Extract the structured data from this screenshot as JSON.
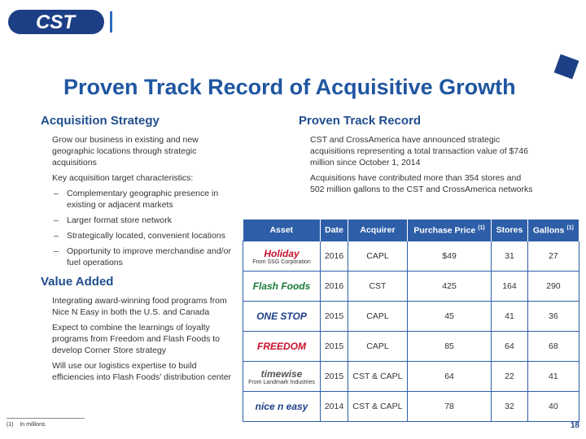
{
  "header": {
    "logo": "CST"
  },
  "title": "Proven Track Record of Acquisitive Growth",
  "left": {
    "sections": [
      {
        "heading": "Acquisition Strategy",
        "items": [
          {
            "text": "Grow our business in existing and new geographic locations through strategic acquisitions",
            "level": 1
          },
          {
            "text": "Key acquisition target characteristics:",
            "level": 1
          },
          {
            "text": "Complementary geographic presence in existing or adjacent markets",
            "level": 2
          },
          {
            "text": "Larger format store network",
            "level": 2
          },
          {
            "text": "Strategically located, convenient locations",
            "level": 2
          },
          {
            "text": "Opportunity to improve merchandise and/or fuel operations",
            "level": 2
          }
        ]
      },
      {
        "heading": "Value Added",
        "items": [
          {
            "text": "Integrating award-winning food programs from Nice N Easy in both the U.S. and Canada",
            "level": 1
          },
          {
            "text": "Expect to combine the learnings of loyalty programs from Freedom and Flash Foods to develop Corner Store strategy",
            "level": 1
          },
          {
            "text": "Will use our logistics expertise to build efficiencies into Flash Foods’ distribution center",
            "level": 1
          }
        ]
      }
    ]
  },
  "right": {
    "heading": "Proven Track Record",
    "paragraphs": [
      "CST and CrossAmerica have announced strategic acquisitions representing a total transaction value of $746 million since October 1, 2014",
      "Acquisitions have contributed more than 354 stores and 502 million gallons to the CST and CrossAmerica networks"
    ]
  },
  "table": {
    "headers": [
      {
        "text": "Asset"
      },
      {
        "text": "Date"
      },
      {
        "text": "Acquirer"
      },
      {
        "text": "Purchase Price",
        "sup": "(1)"
      },
      {
        "text": "Stores"
      },
      {
        "text": "Gallons",
        "sup": "(1)"
      }
    ],
    "rows": [
      {
        "asset": "Holiday",
        "note": "From SSG Corporation",
        "cells": [
          "2016",
          "CAPL",
          "$49",
          "31",
          "27"
        ]
      },
      {
        "asset": "Flash Foods",
        "cells": [
          "2016",
          "CST",
          "425",
          "164",
          "290"
        ]
      },
      {
        "asset": "ONE STOP",
        "cells": [
          "2015",
          "CAPL",
          "45",
          "41",
          "36"
        ]
      },
      {
        "asset": "FREEDOM",
        "cells": [
          "2015",
          "CAPL",
          "85",
          "64",
          "68"
        ]
      },
      {
        "asset": "timewise",
        "note": "From Landmark Industries",
        "cells": [
          "2015",
          "CST & CAPL",
          "64",
          "22",
          "41"
        ]
      },
      {
        "asset": "nice n easy",
        "cells": [
          "2014",
          "CST & CAPL",
          "78",
          "32",
          "40"
        ]
      }
    ]
  },
  "footnote": {
    "marker": "(1)",
    "text": "In millions"
  },
  "page_number": "18"
}
